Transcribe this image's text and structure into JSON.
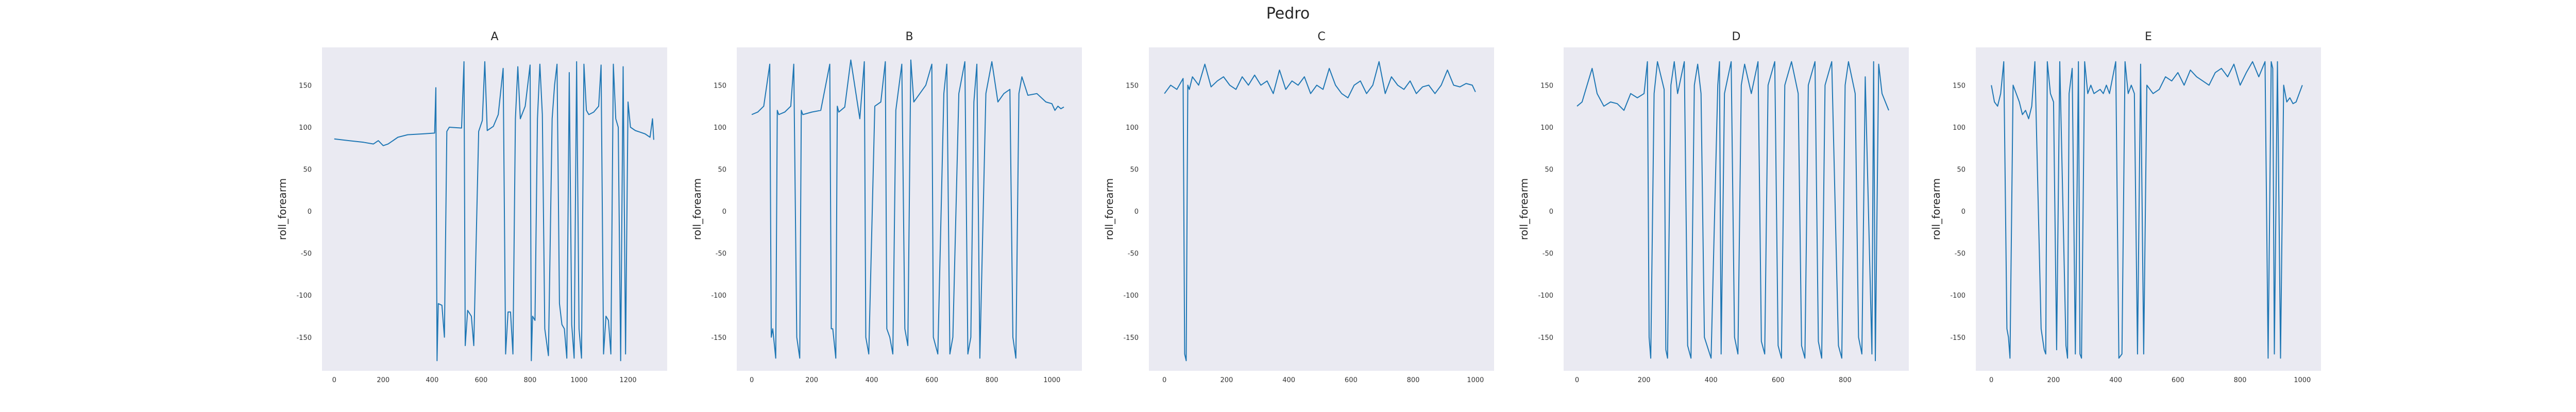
{
  "figure": {
    "title": "Pedro"
  },
  "chart_data": [
    {
      "type": "line",
      "title": "A",
      "xlabel": "",
      "ylabel": "roll_forearm",
      "xlim": [
        -50,
        1360
      ],
      "ylim": [
        -190,
        195
      ],
      "xticks": [
        0,
        200,
        400,
        600,
        800,
        1000,
        1200
      ],
      "yticks": [
        -150,
        -100,
        -50,
        0,
        50,
        100,
        150
      ],
      "grid": false,
      "color": "#1f77b4",
      "x": [
        0,
        60,
        120,
        160,
        180,
        200,
        220,
        260,
        300,
        360,
        410,
        415,
        420,
        425,
        440,
        450,
        460,
        470,
        520,
        530,
        535,
        545,
        560,
        570,
        590,
        605,
        615,
        625,
        650,
        670,
        690,
        700,
        710,
        720,
        730,
        740,
        750,
        760,
        780,
        800,
        805,
        810,
        820,
        830,
        840,
        850,
        860,
        875,
        890,
        900,
        910,
        920,
        930,
        940,
        950,
        960,
        970,
        980,
        990,
        1000,
        1010,
        1020,
        1030,
        1040,
        1060,
        1080,
        1090,
        1100,
        1110,
        1120,
        1130,
        1140,
        1150,
        1160,
        1170,
        1180,
        1190,
        1200,
        1210,
        1230,
        1250,
        1270,
        1290,
        1300,
        1305
      ],
      "y": [
        86,
        84,
        82,
        80,
        84,
        78,
        80,
        88,
        91,
        92,
        93,
        147,
        -178,
        -110,
        -112,
        -150,
        95,
        100,
        99,
        178,
        -160,
        -118,
        -125,
        -160,
        95,
        108,
        178,
        96,
        101,
        115,
        170,
        -170,
        -120,
        -120,
        -170,
        110,
        172,
        110,
        125,
        174,
        -178,
        -125,
        -130,
        110,
        175,
        115,
        -140,
        -172,
        110,
        150,
        175,
        -110,
        -135,
        -140,
        -175,
        165,
        -135,
        -175,
        178,
        -140,
        -175,
        175,
        120,
        115,
        118,
        125,
        174,
        -170,
        -125,
        -130,
        -170,
        175,
        110,
        100,
        -178,
        172,
        -170,
        130,
        100,
        96,
        94,
        92,
        88,
        110,
        85
      ]
    },
    {
      "type": "line",
      "title": "B",
      "xlabel": "",
      "ylabel": "roll_forearm",
      "xlim": [
        -50,
        1100
      ],
      "ylim": [
        -190,
        195
      ],
      "xticks": [
        0,
        200,
        400,
        600,
        800,
        1000
      ],
      "yticks": [
        -150,
        -100,
        -50,
        0,
        50,
        100,
        150
      ],
      "grid": false,
      "color": "#1f77b4",
      "x": [
        0,
        20,
        40,
        50,
        60,
        65,
        70,
        80,
        85,
        90,
        110,
        130,
        140,
        150,
        160,
        165,
        170,
        200,
        230,
        260,
        265,
        270,
        280,
        285,
        290,
        310,
        330,
        360,
        375,
        380,
        390,
        410,
        430,
        445,
        450,
        460,
        470,
        480,
        500,
        510,
        520,
        530,
        540,
        560,
        580,
        600,
        605,
        620,
        640,
        650,
        660,
        670,
        690,
        710,
        720,
        730,
        740,
        750,
        760,
        780,
        800,
        820,
        840,
        860,
        870,
        880,
        890,
        900,
        920,
        950,
        980,
        1000,
        1010,
        1020,
        1030,
        1040
      ],
      "y": [
        115,
        118,
        125,
        150,
        175,
        -150,
        -140,
        -175,
        120,
        115,
        118,
        125,
        175,
        -150,
        -175,
        120,
        115,
        118,
        120,
        175,
        -140,
        -140,
        -175,
        125,
        118,
        124,
        180,
        110,
        178,
        -150,
        -170,
        125,
        130,
        178,
        -140,
        -150,
        -170,
        120,
        175,
        -140,
        -160,
        180,
        130,
        140,
        150,
        175,
        -150,
        -170,
        140,
        175,
        -170,
        -150,
        140,
        178,
        -170,
        -150,
        130,
        175,
        -175,
        140,
        178,
        130,
        140,
        145,
        -150,
        -175,
        140,
        160,
        138,
        140,
        130,
        128,
        120,
        125,
        122,
        124
      ]
    },
    {
      "type": "line",
      "title": "C",
      "xlabel": "",
      "ylabel": "roll_forearm",
      "xlim": [
        -50,
        1060
      ],
      "ylim": [
        -190,
        195
      ],
      "xticks": [
        0,
        200,
        400,
        600,
        800,
        1000
      ],
      "yticks": [
        -150,
        -100,
        -50,
        0,
        50,
        100,
        150
      ],
      "grid": false,
      "color": "#1f77b4",
      "x": [
        0,
        20,
        40,
        60,
        65,
        70,
        75,
        80,
        90,
        110,
        130,
        150,
        170,
        190,
        210,
        230,
        250,
        270,
        290,
        310,
        330,
        350,
        370,
        390,
        410,
        430,
        450,
        470,
        490,
        510,
        530,
        550,
        570,
        590,
        610,
        630,
        650,
        670,
        690,
        710,
        730,
        750,
        770,
        790,
        810,
        830,
        850,
        870,
        890,
        910,
        930,
        950,
        970,
        990,
        1000
      ],
      "y": [
        140,
        150,
        145,
        158,
        -170,
        -178,
        150,
        145,
        160,
        150,
        175,
        148,
        155,
        160,
        150,
        145,
        160,
        150,
        162,
        150,
        155,
        140,
        168,
        145,
        155,
        150,
        160,
        140,
        150,
        145,
        170,
        150,
        140,
        135,
        150,
        155,
        140,
        150,
        178,
        140,
        160,
        150,
        145,
        155,
        140,
        148,
        150,
        140,
        150,
        168,
        150,
        148,
        152,
        150,
        142
      ]
    },
    {
      "type": "line",
      "title": "D",
      "xlabel": "",
      "ylabel": "roll_forearm",
      "xlim": [
        -40,
        990
      ],
      "ylim": [
        -190,
        195
      ],
      "xticks": [
        0,
        200,
        400,
        600,
        800
      ],
      "yticks": [
        -150,
        -100,
        -50,
        0,
        50,
        100,
        150
      ],
      "grid": false,
      "color": "#1f77b4",
      "x": [
        0,
        15,
        30,
        45,
        60,
        80,
        100,
        120,
        140,
        160,
        180,
        200,
        210,
        215,
        220,
        230,
        240,
        260,
        265,
        270,
        280,
        290,
        300,
        320,
        330,
        340,
        350,
        360,
        370,
        380,
        400,
        420,
        425,
        430,
        440,
        460,
        470,
        480,
        490,
        500,
        520,
        540,
        550,
        560,
        570,
        590,
        600,
        610,
        620,
        640,
        660,
        670,
        680,
        690,
        710,
        720,
        730,
        740,
        760,
        780,
        790,
        800,
        810,
        830,
        840,
        850,
        860,
        880,
        885,
        890,
        900,
        910,
        920,
        930
      ],
      "y": [
        125,
        130,
        150,
        170,
        140,
        125,
        130,
        128,
        120,
        140,
        135,
        140,
        178,
        -150,
        -175,
        140,
        178,
        145,
        -165,
        -175,
        150,
        178,
        140,
        178,
        -160,
        -175,
        150,
        175,
        140,
        -150,
        -175,
        150,
        178,
        -170,
        140,
        178,
        -150,
        -170,
        150,
        175,
        140,
        178,
        -155,
        -170,
        150,
        178,
        -160,
        -175,
        150,
        178,
        140,
        -160,
        -175,
        150,
        178,
        -155,
        -175,
        150,
        178,
        -160,
        -175,
        150,
        178,
        140,
        -150,
        -170,
        160,
        -170,
        178,
        -178,
        175,
        140,
        130,
        120
      ]
    },
    {
      "type": "line",
      "title": "E",
      "xlabel": "",
      "ylabel": "roll_forearm",
      "xlim": [
        -50,
        1060
      ],
      "ylim": [
        -190,
        195
      ],
      "xticks": [
        0,
        200,
        400,
        600,
        800,
        1000
      ],
      "yticks": [
        -150,
        -100,
        -50,
        0,
        50,
        100,
        150
      ],
      "grid": false,
      "color": "#1f77b4",
      "x": [
        0,
        10,
        20,
        30,
        40,
        50,
        55,
        60,
        70,
        80,
        90,
        100,
        110,
        120,
        130,
        140,
        160,
        170,
        175,
        180,
        190,
        200,
        210,
        220,
        240,
        245,
        250,
        260,
        270,
        280,
        285,
        290,
        300,
        310,
        320,
        330,
        350,
        360,
        370,
        380,
        400,
        410,
        420,
        430,
        440,
        450,
        460,
        470,
        480,
        490,
        500,
        520,
        540,
        560,
        580,
        600,
        620,
        640,
        660,
        680,
        700,
        720,
        740,
        760,
        780,
        800,
        820,
        840,
        860,
        880,
        890,
        900,
        905,
        910,
        920,
        930,
        940,
        950,
        960,
        970,
        980,
        990,
        1000
      ],
      "y": [
        150,
        130,
        125,
        140,
        178,
        -140,
        -150,
        -175,
        150,
        140,
        130,
        115,
        120,
        110,
        125,
        178,
        -140,
        -165,
        -170,
        178,
        140,
        130,
        -165,
        178,
        -160,
        -175,
        140,
        170,
        -170,
        178,
        -170,
        -175,
        178,
        140,
        150,
        140,
        145,
        140,
        150,
        140,
        178,
        -175,
        -170,
        178,
        140,
        150,
        140,
        -170,
        175,
        -170,
        150,
        140,
        145,
        160,
        155,
        165,
        150,
        168,
        160,
        155,
        150,
        165,
        170,
        160,
        175,
        150,
        165,
        178,
        160,
        178,
        -175,
        178,
        170,
        -170,
        178,
        -175,
        150,
        130,
        135,
        128,
        130,
        140,
        150
      ]
    }
  ]
}
